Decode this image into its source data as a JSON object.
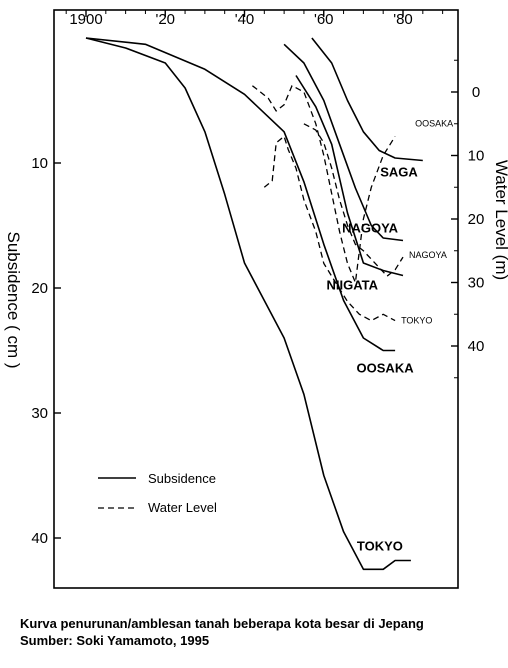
{
  "chart_data": {
    "type": "line",
    "title": "",
    "xlabel": "",
    "ylabel_left": "Subsidence ( cm )",
    "ylabel_right": "Water Level (m)",
    "x_ticks": [
      "1900",
      "'20",
      "'40",
      "'60",
      "'80"
    ],
    "x_tick_values": [
      1900,
      1920,
      1940,
      1960,
      1980
    ],
    "xlim": [
      1892,
      1992
    ],
    "ylim_subsidence": [
      0,
      44
    ],
    "subsidence_ticks": [
      "10",
      "20",
      "30",
      "40"
    ],
    "subsidence_tick_values": [
      10,
      20,
      30,
      40
    ],
    "water_level_ticks": [
      "0",
      "10",
      "20",
      "30",
      "40"
    ],
    "water_level_tick_values": [
      0,
      10,
      20,
      30,
      40
    ],
    "water_level_range": [
      -8,
      55
    ],
    "legend": {
      "position": "bottom-left",
      "subsidence_label": "Subsidence",
      "water_level_label": "Water Level"
    },
    "subsidence_series": [
      {
        "name": "TOKYO",
        "points": [
          [
            1900,
            0
          ],
          [
            1910,
            0.8
          ],
          [
            1920,
            2.0
          ],
          [
            1925,
            4.0
          ],
          [
            1930,
            7.5
          ],
          [
            1935,
            12.5
          ],
          [
            1940,
            18.0
          ],
          [
            1945,
            21.0
          ],
          [
            1950,
            24.0
          ],
          [
            1955,
            28.5
          ],
          [
            1960,
            35.0
          ],
          [
            1965,
            39.5
          ],
          [
            1970,
            42.5
          ],
          [
            1975,
            42.5
          ],
          [
            1978,
            41.8
          ],
          [
            1982,
            41.8
          ]
        ]
      },
      {
        "name": "OOSAKA",
        "points": [
          [
            1900,
            0
          ],
          [
            1915,
            0.5
          ],
          [
            1930,
            2.5
          ],
          [
            1940,
            4.5
          ],
          [
            1950,
            7.5
          ],
          [
            1955,
            11.5
          ],
          [
            1960,
            16.5
          ],
          [
            1965,
            21.0
          ],
          [
            1970,
            24.0
          ],
          [
            1975,
            25.0
          ],
          [
            1978,
            25.0
          ]
        ]
      },
      {
        "name": "NIIGATA",
        "points": [
          [
            1953,
            3.0
          ],
          [
            1958,
            5.5
          ],
          [
            1962,
            8.5
          ],
          [
            1966,
            14.0
          ],
          [
            1970,
            18.0
          ],
          [
            1975,
            18.6
          ],
          [
            1980,
            19.0
          ]
        ]
      },
      {
        "name": "NAGOYA",
        "points": [
          [
            1950,
            0.5
          ],
          [
            1955,
            2.0
          ],
          [
            1960,
            5.0
          ],
          [
            1964,
            8.5
          ],
          [
            1968,
            12.0
          ],
          [
            1972,
            15.0
          ],
          [
            1975,
            16.0
          ],
          [
            1980,
            16.2
          ]
        ]
      },
      {
        "name": "SAGA",
        "points": [
          [
            1957,
            0
          ],
          [
            1962,
            2.0
          ],
          [
            1966,
            5.0
          ],
          [
            1970,
            7.5
          ],
          [
            1974,
            9.0
          ],
          [
            1978,
            9.6
          ],
          [
            1985,
            9.8
          ]
        ]
      }
    ],
    "water_level_series": [
      {
        "name": "OOSAKA",
        "points": [
          [
            1942,
            -1
          ],
          [
            1946,
            1
          ],
          [
            1948,
            3
          ],
          [
            1950,
            2
          ],
          [
            1952,
            -1
          ],
          [
            1955,
            0
          ],
          [
            1958,
            5
          ],
          [
            1960,
            10
          ],
          [
            1962,
            16
          ],
          [
            1964,
            22
          ],
          [
            1966,
            27
          ],
          [
            1968,
            30
          ],
          [
            1970,
            20
          ],
          [
            1972,
            15
          ],
          [
            1975,
            10
          ],
          [
            1978,
            7
          ]
        ]
      },
      {
        "name": "NAGOYA",
        "points": [
          [
            1955,
            5
          ],
          [
            1958,
            6
          ],
          [
            1960,
            8
          ],
          [
            1962,
            12
          ],
          [
            1964,
            17
          ],
          [
            1966,
            21
          ],
          [
            1968,
            24
          ],
          [
            1970,
            25
          ],
          [
            1973,
            27
          ],
          [
            1976,
            29
          ],
          [
            1978,
            28
          ],
          [
            1980,
            26
          ]
        ]
      },
      {
        "name": "TOKYO",
        "points": [
          [
            1945,
            15
          ],
          [
            1947,
            14
          ],
          [
            1948,
            8
          ],
          [
            1950,
            7
          ],
          [
            1951,
            9
          ],
          [
            1953,
            12
          ],
          [
            1955,
            17
          ],
          [
            1958,
            22
          ],
          [
            1960,
            27
          ],
          [
            1963,
            30
          ],
          [
            1966,
            33
          ],
          [
            1969,
            35
          ],
          [
            1972,
            36
          ],
          [
            1975,
            35
          ],
          [
            1978,
            36
          ]
        ]
      }
    ]
  },
  "caption": {
    "line1": "Kurva penurunan/amblesan tanah beberapa kota besar di Jepang",
    "line2": "Sumber: Soki Yamamoto, 1995"
  },
  "colors": {
    "line": "#000000",
    "background": "#ffffff"
  }
}
